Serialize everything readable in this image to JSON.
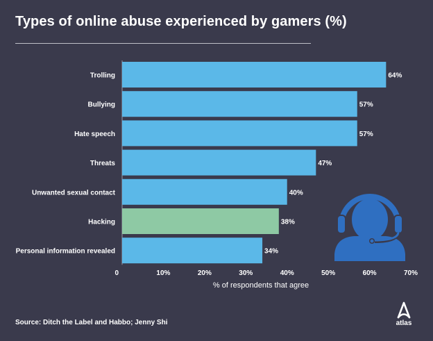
{
  "title": "Types of online abuse experienced by gamers (%)",
  "source": {
    "label": "Source:",
    "text": "Ditch the Label and Habbo; Jenny Shi"
  },
  "logo_text": "atlas",
  "colors": {
    "background": "#3a3a4c",
    "bar": "#5bb8e8",
    "highlight_bar": "#8ec9a4",
    "headset_icon": "#2f6fc1"
  },
  "chart_data": {
    "type": "bar",
    "orientation": "horizontal",
    "categories": [
      "Trolling",
      "Bullying",
      "Hate speech",
      "Threats",
      "Unwanted sexual contact",
      "Hacking",
      "Personal information revealed"
    ],
    "values": [
      64,
      57,
      57,
      47,
      40,
      38,
      34
    ],
    "value_labels": [
      "64%",
      "57%",
      "57%",
      "47%",
      "40%",
      "38%",
      "34%"
    ],
    "highlighted_category": "Hacking",
    "xlabel": "% of respondents that agree",
    "ylabel": "",
    "xlim": [
      0,
      70
    ],
    "x_ticks": [
      "0",
      "10%",
      "20%",
      "30%",
      "40%",
      "50%",
      "60%",
      "70%"
    ],
    "grid": false
  }
}
